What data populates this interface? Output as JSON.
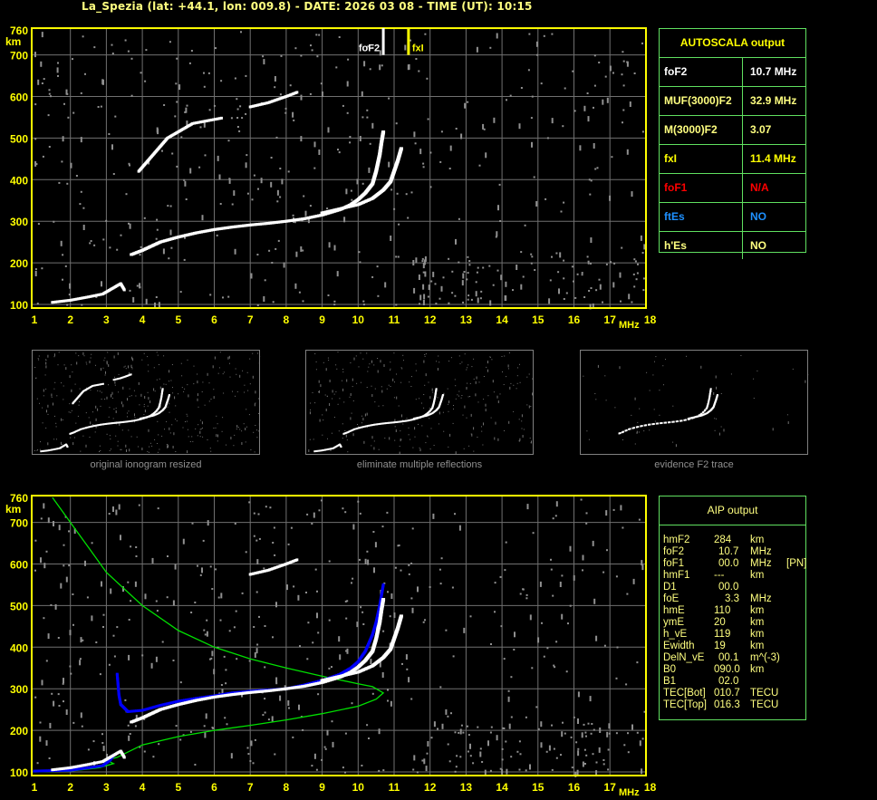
{
  "title": "La_Spezia (lat: +44.1, lon: 009.8) - DATE: 2026 03 08 - TIME (UT): 10:15",
  "colors": {
    "frame": "#ffff00",
    "grid": "#707070",
    "table_border": "#60e060",
    "profile": "#00e000",
    "fit": "#0000ff",
    "echo": "#ffffff",
    "noise": "#909090"
  },
  "autoscala": {
    "header": "AUTOSCALA output",
    "rows": [
      {
        "key": "foF2",
        "value": "10.7 MHz",
        "color": "#ffffff"
      },
      {
        "key": "MUF(3000)F2",
        "value": "32.9 MHz",
        "color": "#ffff80"
      },
      {
        "key": "M(3000)F2",
        "value": "3.07",
        "color": "#ffff80"
      },
      {
        "key": "fxI",
        "value": "11.4 MHz",
        "color": "#ffff00"
      },
      {
        "key": "foF1",
        "value": "N/A",
        "color": "#ff0000"
      },
      {
        "key": "ftEs",
        "value": "NO",
        "color": "#1e90ff"
      },
      {
        "key": "h'Es",
        "value": "NO",
        "color": "#ffff80"
      }
    ]
  },
  "aip": {
    "header": "AIP output",
    "rows": [
      {
        "name": "hmF2",
        "value": "284",
        "unit": "km",
        "extra": ""
      },
      {
        "name": "foF2",
        "value": "10.7",
        "unit": "MHz",
        "extra": ""
      },
      {
        "name": "foF1",
        "value": "00.0",
        "unit": "MHz",
        "extra": "[PN]"
      },
      {
        "name": "hmF1",
        "value": "---",
        "unit": "km",
        "extra": ""
      },
      {
        "name": "D1",
        "value": "00.0",
        "unit": "",
        "extra": ""
      },
      {
        "name": "foE",
        "value": "3.3",
        "unit": "MHz",
        "extra": ""
      },
      {
        "name": "hmE",
        "value": "110",
        "unit": "km",
        "extra": ""
      },
      {
        "name": "ymE",
        "value": "20",
        "unit": "km",
        "extra": ""
      },
      {
        "name": "h_vE",
        "value": "119",
        "unit": "km",
        "extra": ""
      },
      {
        "name": "Ewidth",
        "value": "19",
        "unit": "km",
        "extra": ""
      },
      {
        "name": "DelN_vE",
        "value": "00.1",
        "unit": "m^(-3)",
        "extra": ""
      },
      {
        "name": "B0",
        "value": "090.0",
        "unit": "km",
        "extra": ""
      },
      {
        "name": "B1",
        "value": "02.0",
        "unit": "",
        "extra": ""
      },
      {
        "name": "TEC[Bot]",
        "value": "010.7",
        "unit": "TECU",
        "extra": ""
      },
      {
        "name": "TEC[Top]",
        "value": "016.3",
        "unit": "TECU",
        "extra": ""
      }
    ]
  },
  "thumbnails": [
    {
      "caption": "original ionogram resized"
    },
    {
      "caption": "eliminate multiple reflections"
    },
    {
      "caption": "evidence F2 trace"
    }
  ],
  "chart_data": [
    {
      "type": "scatter",
      "panel": "autoscala-ionogram",
      "xlabel": "MHz",
      "ylabel": "km",
      "xlim": [
        1,
        18
      ],
      "ylim": [
        100,
        760
      ],
      "xticks": [
        "1",
        "2",
        "3",
        "4",
        "5",
        "6",
        "7",
        "8",
        "9",
        "10",
        "11",
        "12",
        "13",
        "14",
        "15",
        "16",
        "17",
        "18"
      ],
      "yticks": [
        "760",
        "700",
        "600",
        "500",
        "400",
        "300",
        "200",
        "100"
      ],
      "grid": true,
      "markers": [
        {
          "label": "foF2",
          "x": 10.7,
          "color": "#ffffff"
        },
        {
          "label": "fxI",
          "x": 11.4,
          "color": "#ffff00"
        }
      ],
      "series": [
        {
          "trace": "o",
          "points": [
            [
              3.7,
              220
            ],
            [
              4.0,
              230
            ],
            [
              4.5,
              250
            ],
            [
              5.0,
              262
            ],
            [
              5.5,
              272
            ],
            [
              6.0,
              280
            ],
            [
              6.5,
              286
            ],
            [
              7.0,
              291
            ],
            [
              7.5,
              295
            ],
            [
              8.0,
              300
            ],
            [
              8.5,
              306
            ],
            [
              9.0,
              315
            ],
            [
              9.5,
              328
            ],
            [
              9.8,
              340
            ],
            [
              10.0,
              352
            ],
            [
              10.2,
              368
            ],
            [
              10.4,
              390
            ],
            [
              10.5,
              420
            ],
            [
              10.6,
              460
            ],
            [
              10.65,
              490
            ],
            [
              10.7,
              515
            ]
          ]
        },
        {
          "trace": "x",
          "points": [
            [
              9.0,
              320
            ],
            [
              9.5,
              330
            ],
            [
              10.0,
              340
            ],
            [
              10.4,
              355
            ],
            [
              10.7,
              375
            ],
            [
              10.9,
              395
            ],
            [
              11.0,
              420
            ],
            [
              11.1,
              445
            ],
            [
              11.2,
              475
            ]
          ]
        },
        {
          "trace": "multiple",
          "points": [
            [
              7.0,
              575
            ],
            [
              7.5,
              585
            ],
            [
              8.0,
              600
            ],
            [
              8.3,
              610
            ]
          ]
        },
        {
          "trace": "multiple",
          "points": [
            [
              3.9,
              420
            ],
            [
              4.3,
              460
            ],
            [
              4.7,
              500
            ],
            [
              5.4,
              535
            ],
            [
              6.2,
              548
            ]
          ]
        },
        {
          "trace": "E",
          "points": [
            [
              1.5,
              105
            ],
            [
              2.0,
              110
            ],
            [
              2.5,
              118
            ],
            [
              2.9,
              125
            ],
            [
              3.4,
              150
            ],
            [
              3.5,
              135
            ]
          ]
        }
      ]
    },
    {
      "type": "line",
      "panel": "aip-ionogram",
      "xlabel": "MHz",
      "ylabel": "km",
      "xlim": [
        1,
        18
      ],
      "ylim": [
        100,
        760
      ],
      "xticks": [
        "1",
        "2",
        "3",
        "4",
        "5",
        "6",
        "7",
        "8",
        "9",
        "10",
        "11",
        "12",
        "13",
        "14",
        "15",
        "16",
        "17",
        "18"
      ],
      "yticks": [
        "760",
        "700",
        "600",
        "500",
        "400",
        "300",
        "200",
        "100"
      ],
      "grid": true,
      "series": [
        {
          "trace": "profile",
          "color": "#00e000",
          "points": [
            [
              1.0,
              100
            ],
            [
              2.0,
              102
            ],
            [
              2.8,
              110
            ],
            [
              3.2,
              120
            ],
            [
              3.0,
              128
            ],
            [
              3.3,
              135
            ],
            [
              4.0,
              165
            ],
            [
              5.0,
              185
            ],
            [
              6.0,
              200
            ],
            [
              7.0,
              212
            ],
            [
              8.0,
              225
            ],
            [
              9.0,
              240
            ],
            [
              10.0,
              258
            ],
            [
              10.5,
              275
            ],
            [
              10.7,
              290
            ],
            [
              10.4,
              305
            ],
            [
              10.0,
              312
            ],
            [
              9.0,
              330
            ],
            [
              8.0,
              350
            ],
            [
              7.0,
              372
            ],
            [
              6.0,
              400
            ],
            [
              5.0,
              440
            ],
            [
              4.0,
              500
            ],
            [
              3.0,
              580
            ],
            [
              2.5,
              640
            ],
            [
              2.0,
              700
            ],
            [
              1.5,
              760
            ]
          ]
        },
        {
          "trace": "fitted",
          "color": "#0000ff",
          "points": [
            [
              1.0,
              102
            ],
            [
              2.0,
              104
            ],
            [
              2.5,
              110
            ],
            [
              2.9,
              115
            ],
            [
              3.1,
              128
            ],
            [
              3.2,
              140
            ]
          ]
        },
        {
          "trace": "fitted",
          "color": "#0000ff",
          "points": [
            [
              3.3,
              335
            ],
            [
              3.35,
              285
            ],
            [
              3.4,
              262
            ],
            [
              3.6,
              245
            ],
            [
              4.0,
              248
            ],
            [
              4.5,
              260
            ],
            [
              5.0,
              270
            ],
            [
              5.5,
              277
            ],
            [
              6.0,
              283
            ],
            [
              6.5,
              290
            ],
            [
              7.0,
              294
            ],
            [
              7.5,
              297
            ],
            [
              8.0,
              300
            ],
            [
              8.5,
              309
            ],
            [
              9.0,
              320
            ],
            [
              9.5,
              335
            ],
            [
              9.8,
              350
            ],
            [
              10.0,
              365
            ],
            [
              10.2,
              390
            ],
            [
              10.4,
              430
            ],
            [
              10.5,
              460
            ],
            [
              10.6,
              500
            ],
            [
              10.7,
              550
            ]
          ]
        },
        {
          "trace": "o",
          "points": [
            [
              3.7,
              220
            ],
            [
              4.0,
              230
            ],
            [
              4.5,
              250
            ],
            [
              5.0,
              262
            ],
            [
              5.5,
              272
            ],
            [
              6.0,
              280
            ],
            [
              6.5,
              286
            ],
            [
              7.0,
              291
            ],
            [
              7.5,
              295
            ],
            [
              8.0,
              300
            ],
            [
              8.5,
              306
            ],
            [
              9.0,
              315
            ],
            [
              9.5,
              328
            ],
            [
              9.8,
              340
            ],
            [
              10.0,
              352
            ],
            [
              10.2,
              368
            ],
            [
              10.4,
              390
            ],
            [
              10.5,
              420
            ],
            [
              10.6,
              460
            ],
            [
              10.65,
              490
            ],
            [
              10.7,
              515
            ]
          ]
        },
        {
          "trace": "x",
          "points": [
            [
              9.0,
              320
            ],
            [
              9.5,
              330
            ],
            [
              10.0,
              340
            ],
            [
              10.4,
              355
            ],
            [
              10.7,
              375
            ],
            [
              10.9,
              395
            ],
            [
              11.0,
              420
            ],
            [
              11.1,
              445
            ],
            [
              11.2,
              475
            ]
          ]
        },
        {
          "trace": "multiple",
          "points": [
            [
              7.0,
              575
            ],
            [
              7.5,
              585
            ],
            [
              8.0,
              600
            ],
            [
              8.3,
              610
            ]
          ]
        },
        {
          "trace": "E",
          "points": [
            [
              1.5,
              105
            ],
            [
              2.0,
              110
            ],
            [
              2.5,
              118
            ],
            [
              2.9,
              125
            ],
            [
              3.4,
              150
            ],
            [
              3.5,
              135
            ]
          ]
        }
      ]
    }
  ]
}
